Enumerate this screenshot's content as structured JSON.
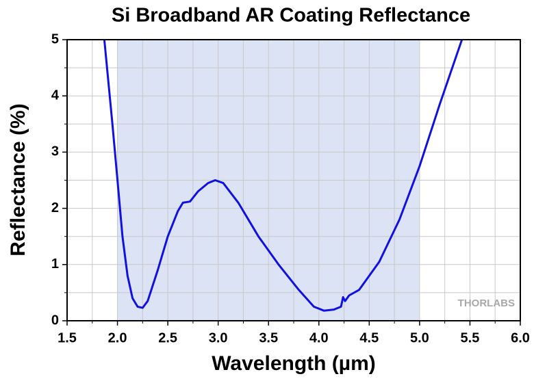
{
  "chart_data": {
    "type": "line",
    "title": "Si Broadband AR Coating Reflectance",
    "x_label": "Wavelength (µm)",
    "y_label": "Reflectance (%)",
    "watermark": "THORLABS",
    "shaded_range": [
      2.0,
      5.0
    ],
    "shade_color": "#dbe3f5",
    "grid": true,
    "xlim": [
      1.5,
      6.0
    ],
    "ylim": [
      0,
      5
    ],
    "xticks": [
      {
        "value": 1.5,
        "label": "1.5"
      },
      {
        "value": 2,
        "label": "2.0"
      },
      {
        "value": 2.5,
        "label": "2.5"
      },
      {
        "value": 3,
        "label": "3.0"
      },
      {
        "value": 3.5,
        "label": "3.5"
      },
      {
        "value": 4,
        "label": "4.0"
      },
      {
        "value": 4.5,
        "label": "4.5"
      },
      {
        "value": 5,
        "label": "5.0"
      },
      {
        "value": 5.5,
        "label": "5.5"
      },
      {
        "value": 6,
        "label": "6.0"
      }
    ],
    "xminorticks": [
      1.75,
      2.25,
      2.75,
      3.25,
      3.75,
      4.25,
      4.75,
      5.25,
      5.75
    ],
    "yticks": [
      0,
      1,
      2,
      3,
      4,
      5
    ],
    "yminorticks": [
      0.5,
      1.5,
      2.5,
      3.5,
      4.5
    ],
    "series": [
      {
        "color": "#1010e0",
        "x": [
          1.87,
          1.95,
          2.0,
          2.05,
          2.1,
          2.15,
          2.2,
          2.25,
          2.3,
          2.4,
          2.5,
          2.6,
          2.65,
          2.72,
          2.8,
          2.9,
          2.97,
          3.05,
          3.2,
          3.4,
          3.6,
          3.8,
          3.95,
          4.05,
          4.15,
          4.22,
          4.24,
          4.26,
          4.3,
          4.4,
          4.6,
          4.8,
          5.0,
          5.2,
          5.42
        ],
        "values": [
          5.0,
          3.5,
          2.5,
          1.5,
          0.8,
          0.4,
          0.25,
          0.23,
          0.35,
          0.9,
          1.5,
          1.95,
          2.1,
          2.12,
          2.3,
          2.45,
          2.5,
          2.45,
          2.1,
          1.5,
          1.0,
          0.55,
          0.25,
          0.18,
          0.2,
          0.25,
          0.42,
          0.35,
          0.45,
          0.55,
          1.05,
          1.8,
          2.75,
          3.85,
          5.0
        ]
      }
    ]
  }
}
